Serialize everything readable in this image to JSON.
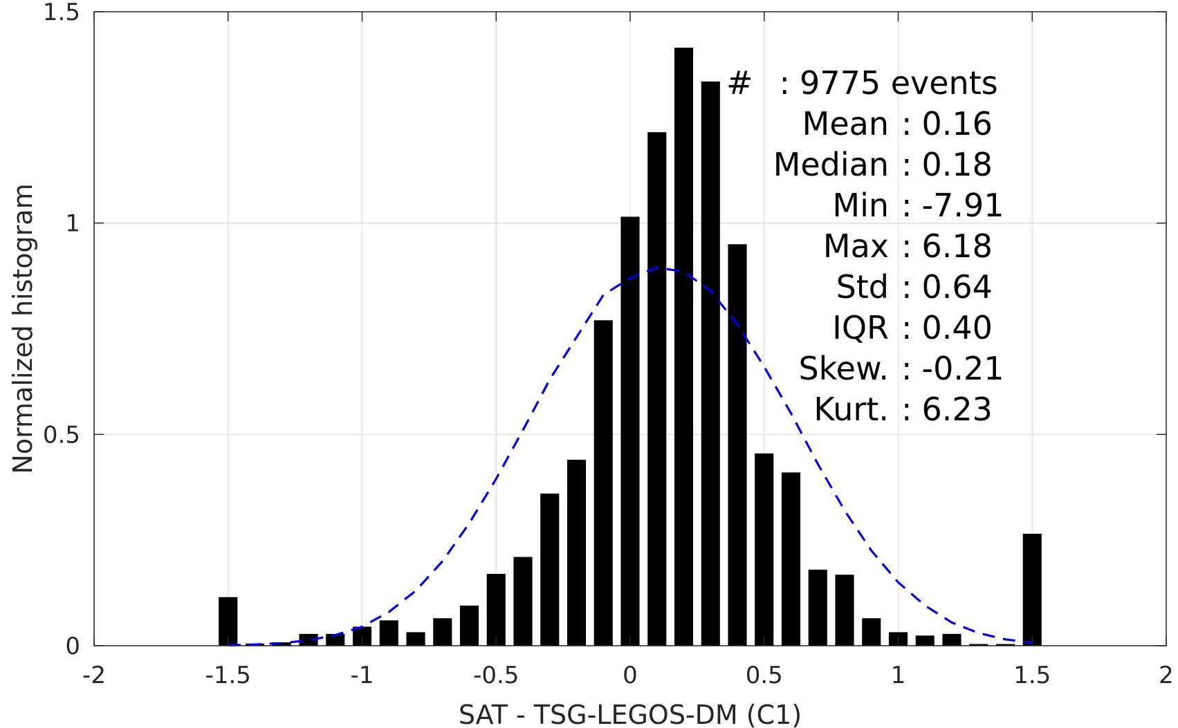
{
  "chart_data": {
    "type": "bar",
    "xlabel": "SAT - TSG-LEGOS-DM (C1)",
    "ylabel": "Normalized histogram",
    "xlim": [
      -2,
      2
    ],
    "ylim": [
      0,
      1.5
    ],
    "xticks": [
      "-2",
      "-1.5",
      "-1",
      "-0.5",
      "0",
      "0.5",
      "1",
      "1.5",
      "2"
    ],
    "yticks": [
      "0",
      "0.5",
      "1",
      "1.5"
    ],
    "grid": true,
    "bar_color": "#000000",
    "bar_width": 0.07,
    "bars": {
      "x": [
        -1.5,
        -1.4,
        -1.3,
        -1.2,
        -1.1,
        -1.0,
        -0.9,
        -0.8,
        -0.7,
        -0.6,
        -0.5,
        -0.4,
        -0.3,
        -0.2,
        -0.1,
        0.0,
        0.1,
        0.2,
        0.3,
        0.4,
        0.5,
        0.6,
        0.7,
        0.8,
        0.9,
        1.0,
        1.1,
        1.2,
        1.3,
        1.4,
        1.5
      ],
      "y": [
        0.115,
        0.005,
        0.008,
        0.028,
        0.028,
        0.045,
        0.06,
        0.032,
        0.065,
        0.095,
        0.17,
        0.21,
        0.36,
        0.44,
        0.77,
        1.015,
        1.215,
        1.415,
        1.335,
        0.95,
        0.455,
        0.41,
        0.18,
        0.168,
        0.065,
        0.032,
        0.024,
        0.028,
        0.004,
        0.004,
        0.265
      ]
    },
    "fit_curve": {
      "style": "dashed",
      "color": "#0000ee",
      "x": [
        -1.5,
        -1.4,
        -1.3,
        -1.2,
        -1.1,
        -1.0,
        -0.9,
        -0.8,
        -0.7,
        -0.6,
        -0.5,
        -0.4,
        -0.3,
        -0.2,
        -0.1,
        0.0,
        0.1,
        0.2,
        0.3,
        0.4,
        0.5,
        0.6,
        0.7,
        0.8,
        0.9,
        1.0,
        1.1,
        1.2,
        1.3,
        1.4,
        1.5
      ],
      "y": [
        0.001,
        0.003,
        0.006,
        0.013,
        0.025,
        0.045,
        0.08,
        0.13,
        0.2,
        0.29,
        0.395,
        0.51,
        0.63,
        0.73,
        0.83,
        0.87,
        0.895,
        0.885,
        0.84,
        0.76,
        0.66,
        0.55,
        0.43,
        0.32,
        0.225,
        0.15,
        0.095,
        0.055,
        0.03,
        0.015,
        0.007
      ]
    },
    "stats": [
      {
        "label": "#",
        "sep": ":",
        "value": "9775 events"
      },
      {
        "label": "Mean",
        "sep": ":",
        "value": "0.16"
      },
      {
        "label": "Median",
        "sep": ":",
        "value": "0.18"
      },
      {
        "label": "Min",
        "sep": ":",
        "value": "-7.91"
      },
      {
        "label": "Max",
        "sep": ":",
        "value": "6.18"
      },
      {
        "label": "Std",
        "sep": ":",
        "value": "0.64"
      },
      {
        "label": "IQR",
        "sep": ":",
        "value": "0.40"
      },
      {
        "label": "Skew.",
        "sep": ":",
        "value": "-0.21"
      },
      {
        "label": "Kurt.",
        "sep": ":",
        "value": "6.23"
      }
    ]
  }
}
